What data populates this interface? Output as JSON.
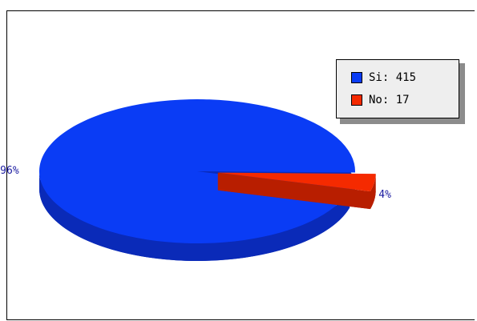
{
  "chart_data": {
    "type": "pie",
    "style": "3d",
    "slices": [
      {
        "label": "Si",
        "value": 415,
        "percent_label": "96%",
        "color": "#0a3cf5",
        "side_color": "#0a2ab8"
      },
      {
        "label": "No",
        "value": 17,
        "percent_label": "4%",
        "color": "#f52a00",
        "side_color": "#b81e00"
      }
    ],
    "legend": {
      "placement": "top-right",
      "entries": [
        "Si: 415",
        "No: 17"
      ]
    }
  }
}
